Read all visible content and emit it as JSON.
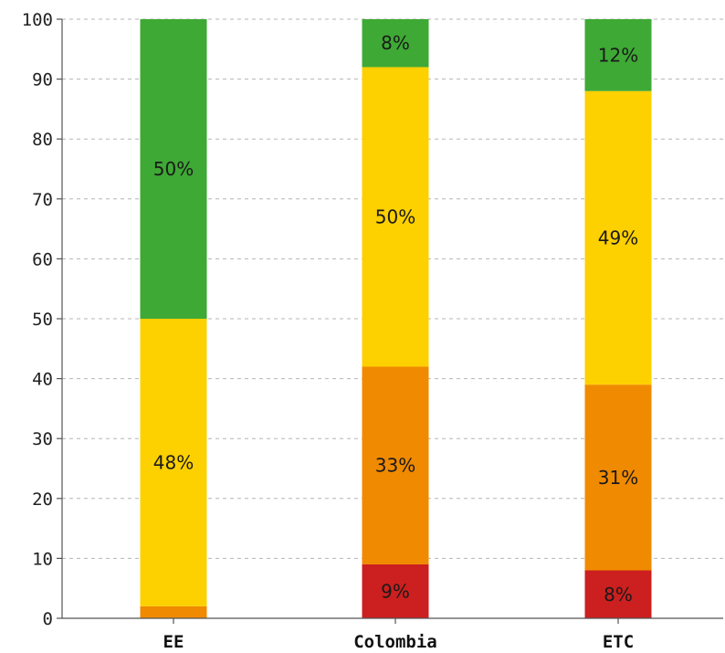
{
  "chart_data": {
    "type": "bar",
    "stacked": true,
    "categories": [
      "EE",
      "Colombia",
      "ETC"
    ],
    "series": [
      {
        "color": "#cc1f1f",
        "values": [
          0,
          9,
          8
        ],
        "labels": [
          "",
          "9%",
          "8%"
        ]
      },
      {
        "color": "#f08a00",
        "values": [
          2,
          33,
          31
        ],
        "labels": [
          "",
          "33%",
          "31%"
        ]
      },
      {
        "color": "#fdd000",
        "values": [
          48,
          50,
          49
        ],
        "labels": [
          "48%",
          "50%",
          "49%"
        ]
      },
      {
        "color": "#3ea935",
        "values": [
          50,
          8,
          12
        ],
        "labels": [
          "50%",
          "8%",
          "12%"
        ]
      }
    ],
    "ylim": [
      0,
      100
    ],
    "yticks": [
      0,
      10,
      20,
      30,
      40,
      50,
      60,
      70,
      80,
      90,
      100
    ],
    "grid": true,
    "legend": "none",
    "title": "",
    "xlabel": "",
    "ylabel": ""
  }
}
